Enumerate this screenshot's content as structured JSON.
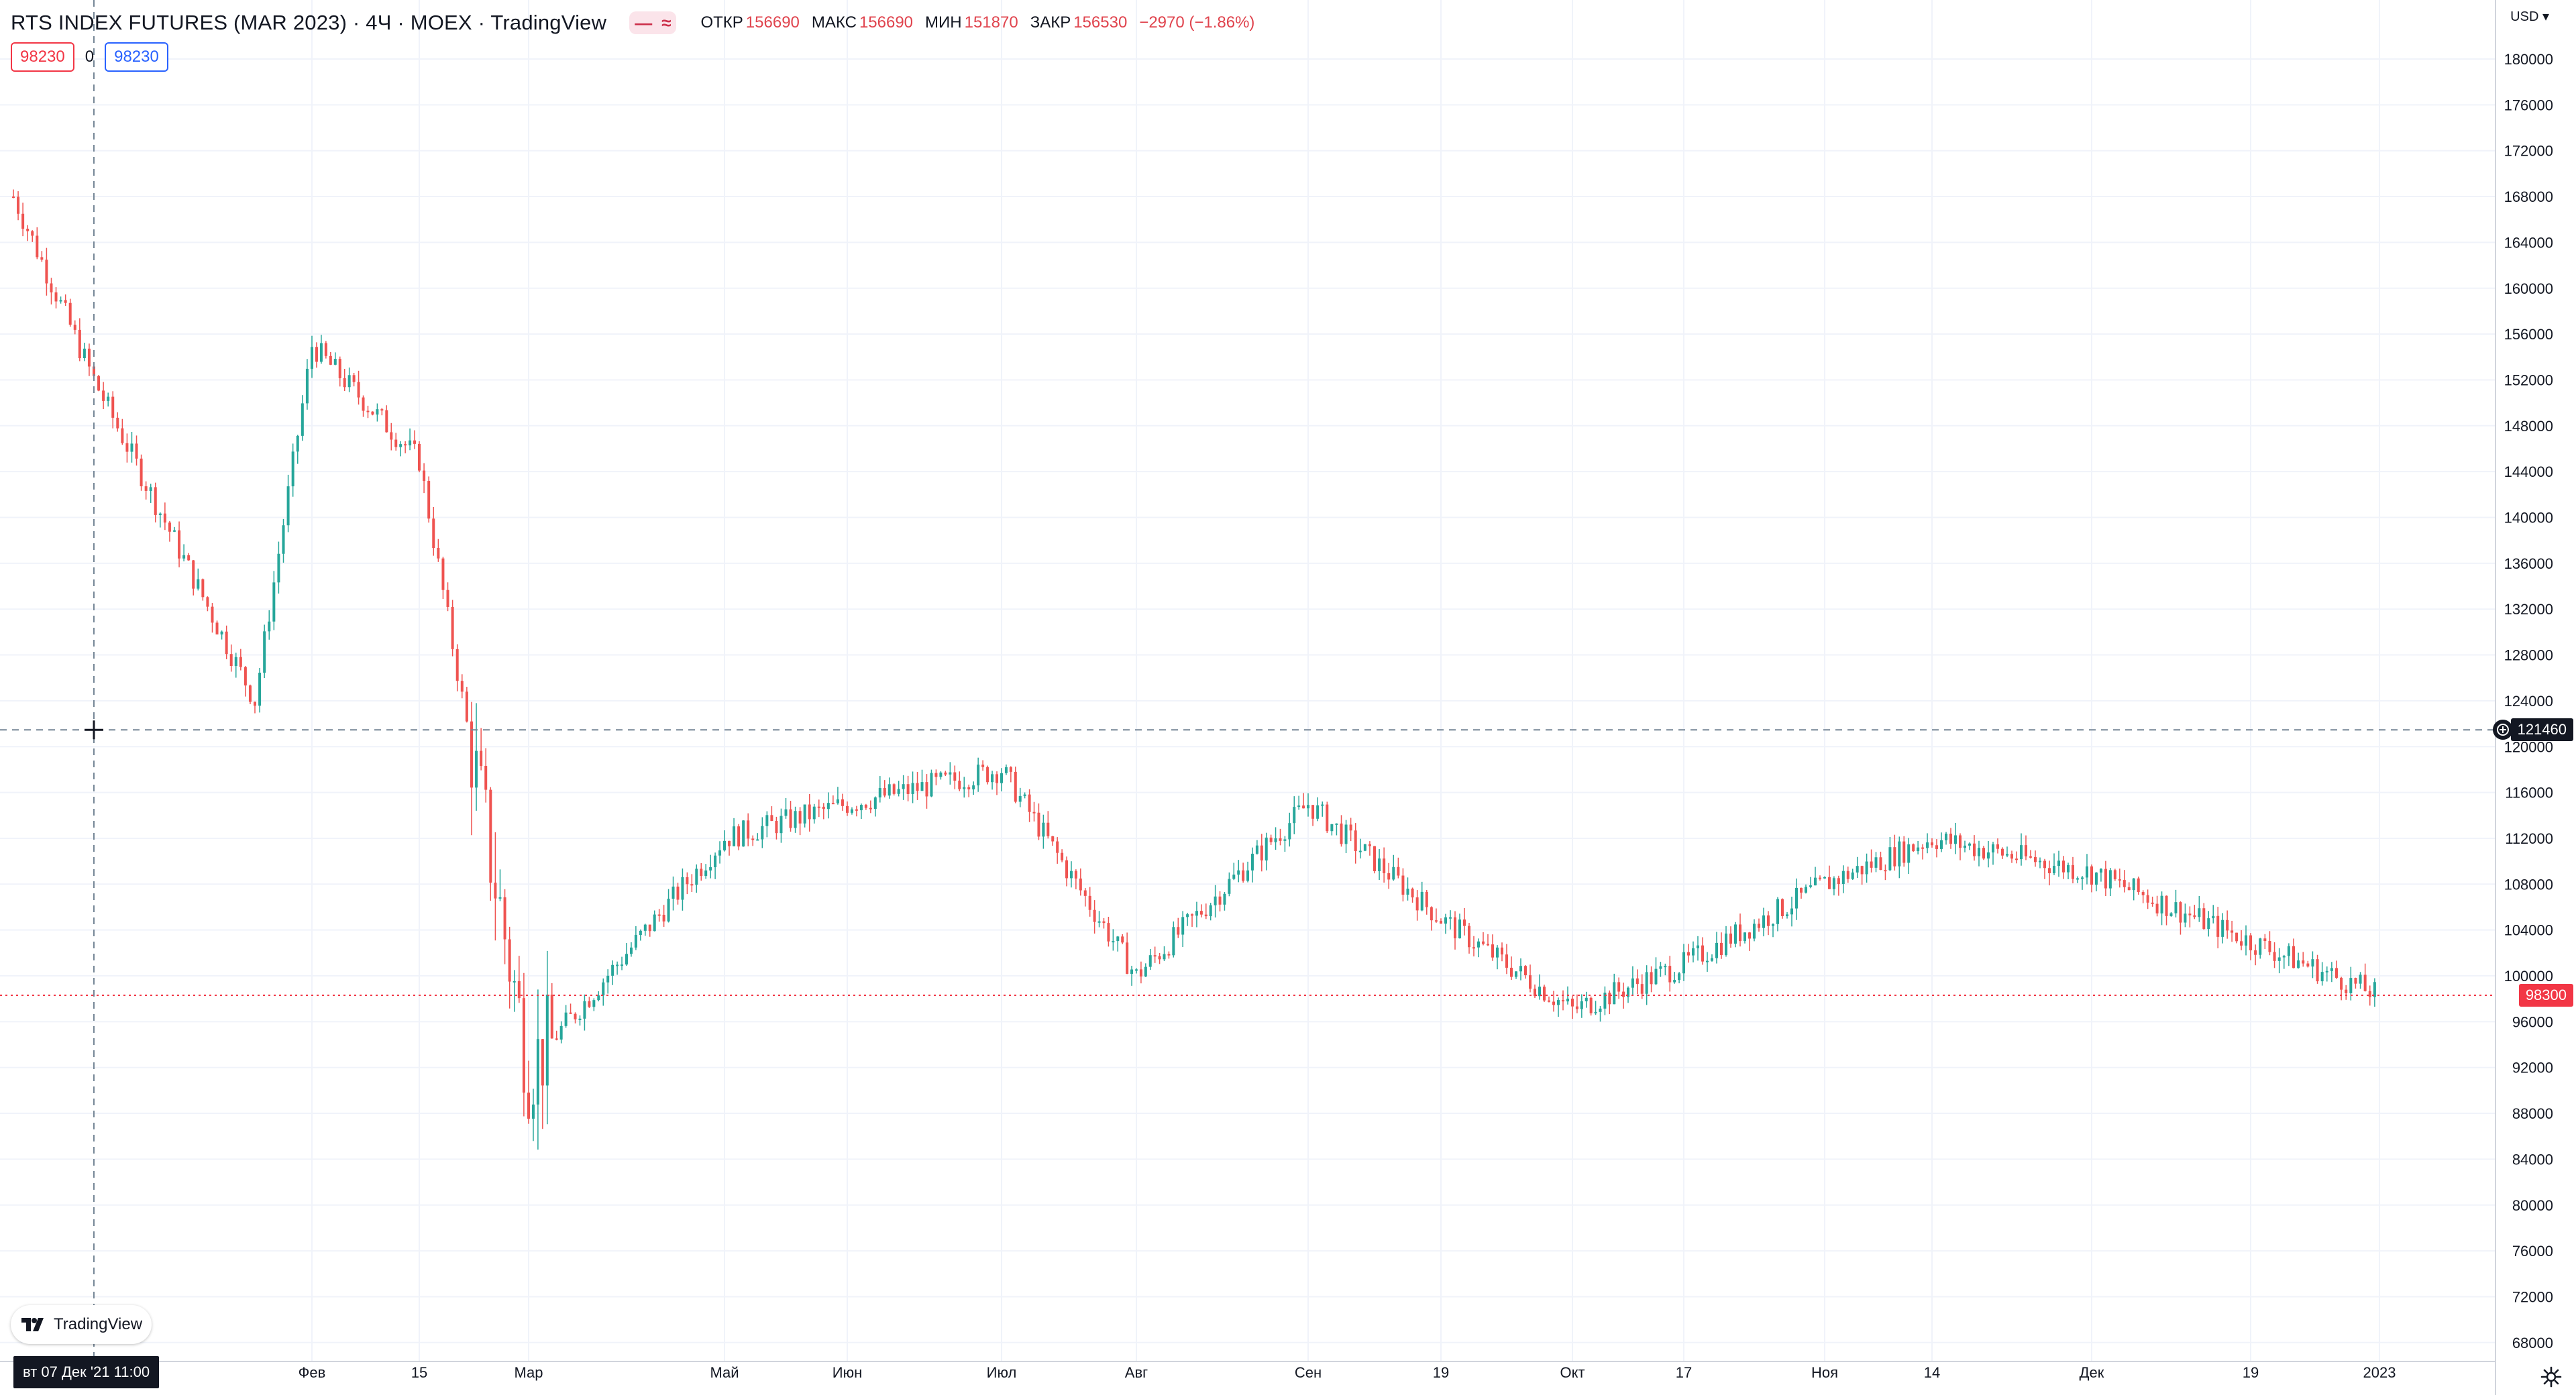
{
  "header": {
    "symbol": "RTS INDEX FUTURES (MAR 2023) · 4Ч · MOEX · TradingView",
    "indicator_pill": [
      "—",
      "≈"
    ],
    "ohlc": {
      "open_label": "ОТКР",
      "open": "156690",
      "high_label": "МАКС",
      "high": "156690",
      "low_label": "МИН",
      "low": "151870",
      "close_label": "ЗАКР",
      "close": "156530",
      "change": "−2970 (−1.86%)"
    },
    "sell_price": "98230",
    "spread": "0",
    "buy_price": "98230",
    "currency": "USD ▾"
  },
  "brand": {
    "logo_text": "TradingView"
  },
  "crosshair": {
    "time_label": "вт 07 Дек '21   11:00",
    "price_label": "121460",
    "price": 121460
  },
  "last_price": {
    "label": "98300",
    "value": 98300
  },
  "price_axis": {
    "labels": [
      "180000",
      "176000",
      "172000",
      "168000",
      "164000",
      "160000",
      "156000",
      "152000",
      "148000",
      "144000",
      "140000",
      "136000",
      "132000",
      "128000",
      "124000",
      "120000",
      "116000",
      "112000",
      "108000",
      "104000",
      "100000",
      "96000",
      "92000",
      "88000",
      "84000",
      "80000",
      "76000",
      "72000",
      "68000"
    ],
    "min": 68000,
    "max": 180000
  },
  "time_axis": {
    "labels": [
      "Фев",
      "15",
      "Мар",
      "Май",
      "Июн",
      "Июл",
      "Авг",
      "Сен",
      "19",
      "Окт",
      "17",
      "Ноя",
      "14",
      "Дек",
      "19",
      "2023"
    ]
  },
  "chart_data": {
    "type": "candlestick",
    "title": "RTS INDEX FUTURES (MAR 2023) · 4Ч · MOEX · TradingView",
    "ylim": [
      68000,
      180000
    ],
    "x_ticks": [
      "Фев",
      "15",
      "Мар",
      "Май",
      "Июн",
      "Июл",
      "Авг",
      "Сен",
      "19",
      "Окт",
      "17",
      "Ноя",
      "14",
      "Дек",
      "19",
      "2023"
    ],
    "close_path": [
      [
        "Фев",
        155000
      ],
      [
        "15",
        145000
      ],
      [
        "Мар",
        92000
      ],
      [
        "Май",
        112000
      ],
      [
        "Июн",
        115000
      ],
      [
        "Июл",
        118000
      ],
      [
        "Авг",
        100000
      ],
      [
        "Сен",
        115000
      ],
      [
        "19",
        105000
      ],
      [
        "Окт",
        97000
      ],
      [
        "17",
        101000
      ],
      [
        "Ноя",
        108000
      ],
      [
        "14",
        112000
      ],
      [
        "Дек",
        109000
      ],
      [
        "19",
        103000
      ],
      [
        "2023",
        98300
      ]
    ],
    "colors": {
      "up": "#26a69a",
      "down": "#ef5350"
    },
    "grid": true
  }
}
